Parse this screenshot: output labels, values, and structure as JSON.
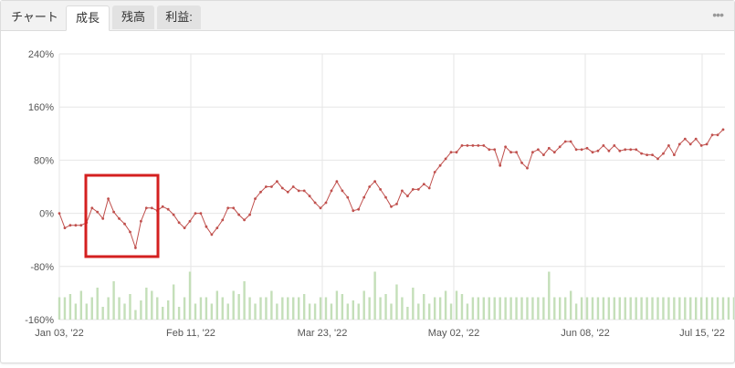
{
  "tabs": [
    {
      "label": "チャート"
    },
    {
      "label": "成長"
    },
    {
      "label": "残高"
    },
    {
      "label": "利益:"
    }
  ],
  "more_icon": "more-icon",
  "colors": {
    "line": "#c0504d",
    "volume": "#c4dfb9",
    "grid": "#e6e6e6",
    "highlight": "#d42020"
  },
  "chart_data": {
    "type": "line",
    "title": "",
    "xlabel": "",
    "ylabel": "",
    "ylim": [
      -160,
      240
    ],
    "y_ticks": [
      "240%",
      "160%",
      "80%",
      "0%",
      "-80%",
      "-160%"
    ],
    "x_ticks": [
      "Jan 03, '22",
      "Feb 11, '22",
      "Mar 23, '22",
      "May 02, '22",
      "Jun 08, '22",
      "Jul 15, '22"
    ],
    "grid": true,
    "series": [
      {
        "values": [
          0,
          -22,
          -18,
          -18,
          -18,
          -14,
          8,
          2,
          -8,
          22,
          2,
          -8,
          -16,
          -28,
          -52,
          -12,
          8,
          8,
          4,
          10,
          6,
          -2,
          -14,
          -22,
          -12,
          0,
          0,
          -20,
          -32,
          -22,
          -10,
          8,
          8,
          -2,
          -10,
          -2,
          22,
          32,
          40,
          40,
          48,
          38,
          32,
          40,
          34,
          34,
          26,
          16,
          8,
          16,
          34,
          48,
          34,
          24,
          4,
          6,
          24,
          40,
          48,
          36,
          24,
          10,
          14,
          34,
          26,
          36,
          36,
          44,
          38,
          62,
          72,
          82,
          92,
          92,
          102,
          102,
          102,
          102,
          102,
          96,
          96,
          72,
          100,
          92,
          92,
          76,
          68,
          92,
          96,
          88,
          98,
          92,
          100,
          108,
          108,
          96,
          96,
          98,
          92,
          94,
          102,
          94,
          102,
          94,
          96,
          96,
          96,
          90,
          88,
          88,
          82,
          90,
          102,
          88,
          104,
          112,
          104,
          112,
          102,
          104,
          118,
          118,
          126
        ]
      }
    ],
    "volume": [
      14,
      14,
      16,
      10,
      18,
      10,
      14,
      20,
      8,
      14,
      24,
      14,
      10,
      16,
      6,
      12,
      20,
      18,
      14,
      8,
      12,
      22,
      8,
      14,
      30,
      10,
      14,
      14,
      10,
      18,
      14,
      10,
      18,
      16,
      24,
      14,
      10,
      14,
      14,
      18,
      10,
      14,
      14,
      14,
      14,
      16,
      10,
      10,
      14,
      14,
      10,
      18,
      16,
      10,
      12,
      10,
      18,
      14,
      30,
      14,
      16,
      10,
      22,
      14,
      8,
      20,
      10,
      16,
      10,
      14,
      14,
      18,
      10,
      18,
      16,
      10,
      14,
      14,
      14,
      14,
      14,
      14,
      14,
      14,
      14,
      14,
      14,
      14,
      14,
      14,
      30,
      14,
      14,
      14,
      18,
      10,
      14,
      14,
      14,
      14,
      14,
      14,
      14,
      14,
      14,
      14,
      14,
      14,
      14,
      14,
      14,
      14,
      14,
      14,
      14,
      14,
      14,
      14,
      14,
      14,
      14,
      14,
      14,
      14,
      14
    ]
  },
  "highlight_label": "highlight-box"
}
